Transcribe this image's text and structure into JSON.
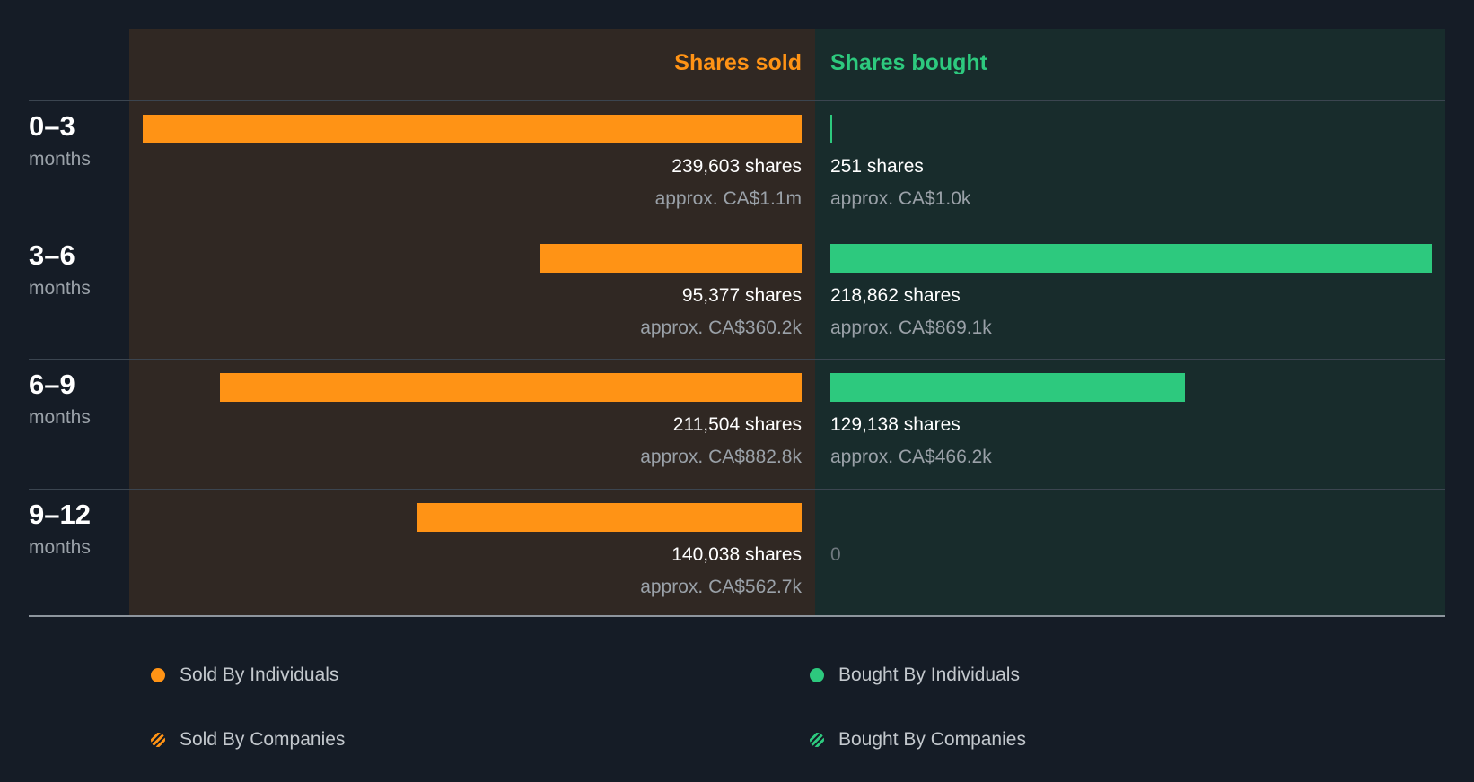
{
  "colors": {
    "sold": "#ff9315",
    "bought": "#2dc97e"
  },
  "chart_data": {
    "type": "bar",
    "headers": {
      "sold": "Shares sold",
      "bought": "Shares bought"
    },
    "categories": [
      {
        "range": "0–3",
        "unit": "months"
      },
      {
        "range": "3–6",
        "unit": "months"
      },
      {
        "range": "6–9",
        "unit": "months"
      },
      {
        "range": "9–12",
        "unit": "months"
      }
    ],
    "series": [
      {
        "name": "Shares sold",
        "values": [
          239603,
          95377,
          211504,
          140038
        ],
        "shares_labels": [
          "239,603 shares",
          "95,377 shares",
          "211,504 shares",
          "140,038 shares"
        ],
        "approx_labels": [
          "approx. CA$1.1m",
          "approx. CA$360.2k",
          "approx. CA$882.8k",
          "approx. CA$562.7k"
        ]
      },
      {
        "name": "Shares bought",
        "values": [
          251,
          218862,
          129138,
          0
        ],
        "shares_labels": [
          "251 shares",
          "218,862 shares",
          "129,138 shares",
          "0"
        ],
        "approx_labels": [
          "approx. CA$1.0k",
          "approx. CA$869.1k",
          "approx. CA$466.2k",
          ""
        ]
      }
    ],
    "legend": [
      {
        "label": "Sold By Individuals",
        "marker": "dot",
        "color": "#ff9315"
      },
      {
        "label": "Bought By Individuals",
        "marker": "dot",
        "color": "#2dc97e"
      },
      {
        "label": "Sold By Companies",
        "marker": "striped-dot",
        "color": "#ff9315"
      },
      {
        "label": "Bought By Companies",
        "marker": "striped-dot",
        "color": "#2dc97e"
      }
    ]
  }
}
